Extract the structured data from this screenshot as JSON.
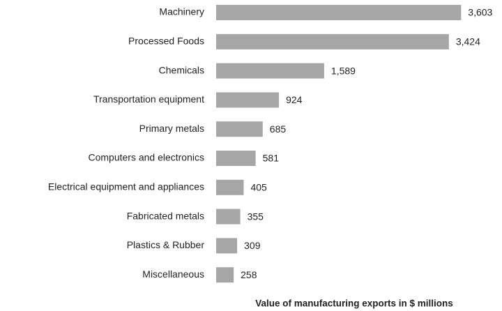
{
  "chart_data": {
    "type": "bar",
    "orientation": "horizontal",
    "xlabel": "Value of manufacturing exports in $ millions",
    "categories": [
      "Machinery",
      "Processed Foods",
      "Chemicals",
      "Transportation equipment",
      "Primary metals",
      "Computers and electronics",
      "Electrical equipment and appliances",
      "Fabricated metals",
      "Plastics & Rubber",
      "Miscellaneous"
    ],
    "values": [
      3603,
      3424,
      1589,
      924,
      685,
      581,
      405,
      355,
      309,
      258
    ],
    "value_labels": [
      "3,603",
      "3,424",
      "1,589",
      "924",
      "685",
      "581",
      "405",
      "355",
      "309",
      "258"
    ],
    "color": "#a6a6a6",
    "xlim": [
      0,
      4000
    ]
  }
}
